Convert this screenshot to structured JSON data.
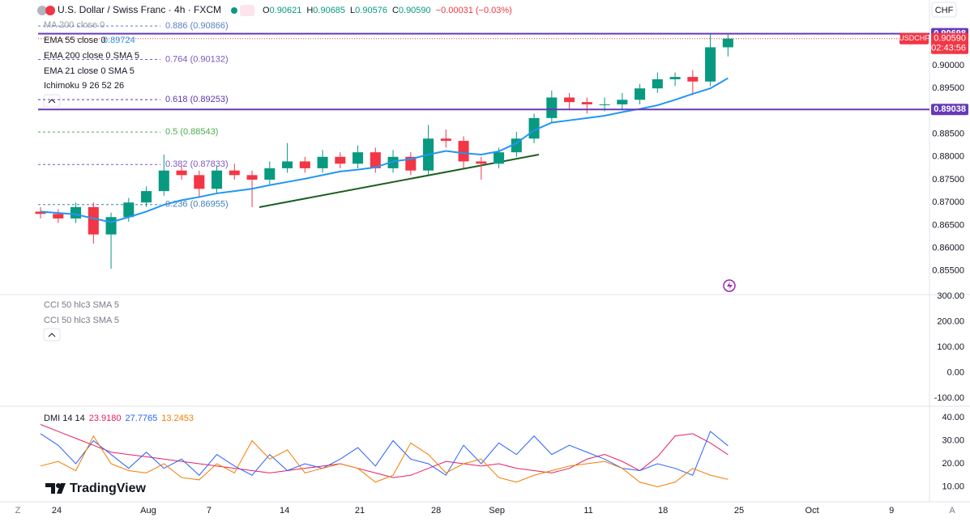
{
  "header": {
    "symbol": "U.S. Dollar / Swiss Franc · 4h · FXCM",
    "ohlc": [
      {
        "k": "O",
        "v": "0.90621"
      },
      {
        "k": "H",
        "v": "0.90685"
      },
      {
        "k": "L",
        "v": "0.90576"
      },
      {
        "k": "C",
        "v": "0.90590"
      }
    ],
    "change": "−0.00031 (−0.03%)",
    "currency": "CHF"
  },
  "studies": [
    {
      "name": "MA 200 close 0"
    },
    {
      "name": "EMA 200 close 0 SMA 5"
    },
    {
      "name": "EMA 21 close 0 SMA 5"
    },
    {
      "name": "Ichimoku 9 26 52 26"
    }
  ],
  "cci_studies": [
    "CCI 50 hlc3 SMA 5",
    "CCI 50 hlc3 SMA 5"
  ],
  "logo": "TradingView",
  "corner_buttons": [
    "Z",
    "A"
  ],
  "chart_data": [
    {
      "type": "candlestick",
      "xlim": [
        -0.14,
        50.34
      ],
      "xticks": [
        {
          "value": 0.92,
          "label": "24"
        },
        {
          "value": 6.11,
          "label": "Aug"
        },
        {
          "value": 9.56,
          "label": "7"
        },
        {
          "value": 13.84,
          "label": "14"
        },
        {
          "value": 18.11,
          "label": "21"
        },
        {
          "value": 22.44,
          "label": "28"
        },
        {
          "value": 25.89,
          "label": "Sep"
        },
        {
          "value": 31.08,
          "label": "11"
        },
        {
          "value": 35.31,
          "label": "18"
        },
        {
          "value": 39.63,
          "label": "25"
        },
        {
          "value": 43.77,
          "label": "Oct"
        },
        {
          "value": 48.28,
          "label": "9"
        }
      ],
      "ylim": [
        0.85018,
        0.91436
      ],
      "yticks": [
        {
          "value": 0.855,
          "label": "0.85500"
        },
        {
          "value": 0.86,
          "label": "0.86000"
        },
        {
          "value": 0.865,
          "label": "0.86500"
        },
        {
          "value": 0.87,
          "label": "0.87000"
        },
        {
          "value": 0.875,
          "label": "0.87500"
        },
        {
          "value": 0.88,
          "label": "0.88000"
        },
        {
          "value": 0.885,
          "label": "0.88500"
        },
        {
          "value": 0.89,
          "label": "0.89000"
        },
        {
          "value": 0.895,
          "label": "0.89500"
        },
        {
          "value": 0.9,
          "label": "0.90000"
        }
      ],
      "grid": false,
      "up_color": "#089981",
      "down_color": "#f23645",
      "open": [
        0.868,
        0.8675,
        0.8665,
        0.869,
        0.863,
        0.8668,
        0.87,
        0.8725,
        0.877,
        0.876,
        0.873,
        0.877,
        0.876,
        0.875,
        0.8775,
        0.879,
        0.8775,
        0.88,
        0.8785,
        0.881,
        0.8775,
        0.88,
        0.877,
        0.884,
        0.8835,
        0.879,
        0.8785,
        0.881,
        0.884,
        0.8885,
        0.893,
        0.892,
        0.8915,
        0.8915,
        0.8925,
        0.895,
        0.897,
        0.8975,
        0.8965,
        0.904
      ],
      "high": [
        0.869,
        0.8685,
        0.87,
        0.87,
        0.8678,
        0.871,
        0.8735,
        0.8805,
        0.878,
        0.877,
        0.878,
        0.8785,
        0.877,
        0.879,
        0.883,
        0.88,
        0.8815,
        0.881,
        0.8825,
        0.882,
        0.8815,
        0.881,
        0.887,
        0.886,
        0.8845,
        0.88,
        0.882,
        0.8855,
        0.8895,
        0.8945,
        0.894,
        0.893,
        0.893,
        0.894,
        0.896,
        0.8985,
        0.8985,
        0.899,
        0.9069,
        0.9069
      ],
      "low": [
        0.8665,
        0.8655,
        0.8655,
        0.861,
        0.8555,
        0.8658,
        0.869,
        0.8715,
        0.875,
        0.871,
        0.872,
        0.875,
        0.869,
        0.874,
        0.8765,
        0.8765,
        0.8765,
        0.8775,
        0.8775,
        0.8765,
        0.8765,
        0.876,
        0.876,
        0.882,
        0.8775,
        0.875,
        0.8775,
        0.88,
        0.883,
        0.8875,
        0.8905,
        0.8895,
        0.89,
        0.8905,
        0.8915,
        0.894,
        0.8955,
        0.8935,
        0.8955,
        0.902
      ],
      "close": [
        0.8675,
        0.8665,
        0.869,
        0.863,
        0.8668,
        0.87,
        0.8725,
        0.877,
        0.876,
        0.873,
        0.877,
        0.876,
        0.875,
        0.8775,
        0.879,
        0.8775,
        0.88,
        0.8785,
        0.881,
        0.8775,
        0.88,
        0.877,
        0.884,
        0.8835,
        0.879,
        0.8785,
        0.881,
        0.884,
        0.8885,
        0.893,
        0.892,
        0.8915,
        0.8915,
        0.8925,
        0.895,
        0.897,
        0.8975,
        0.8965,
        0.904,
        0.9059
      ],
      "series": [
        {
          "name": "EMA 55 close 0",
          "color": "#2196f3",
          "value_label": "0.89724",
          "values": [
            0.868,
            0.8677,
            0.8674,
            0.8665,
            0.8657,
            0.8668,
            0.868,
            0.8695,
            0.8705,
            0.8712,
            0.872,
            0.8725,
            0.873,
            0.8738,
            0.8745,
            0.8752,
            0.876,
            0.8768,
            0.8772,
            0.8777,
            0.879,
            0.8795,
            0.8805,
            0.8813,
            0.8808,
            0.8805,
            0.8812,
            0.883,
            0.8858,
            0.8875,
            0.888,
            0.8885,
            0.889,
            0.8898,
            0.8905,
            0.8913,
            0.8925,
            0.8938,
            0.895,
            0.89724
          ]
        }
      ],
      "fib_levels": [
        {
          "value": 0.90866,
          "label": "0.886 (0.90866)",
          "color": "#5b7fc4"
        },
        {
          "value": 0.90132,
          "label": "0.764 (0.90132)",
          "color": "#7e57c2"
        },
        {
          "value": 0.89253,
          "label": "0.618 (0.89253)",
          "color": "#5e35b1"
        },
        {
          "value": 0.88543,
          "label": "0.5 (0.88543)",
          "color": "#4caf50"
        },
        {
          "value": 0.87833,
          "label": "0.382 (0.87833)",
          "color": "#7e57c2"
        },
        {
          "value": 0.86955,
          "label": "0.236 (0.86955)",
          "color": "#3f7fbf"
        }
      ],
      "hlines": [
        {
          "value": 0.90698,
          "color": "#673ab7"
        },
        {
          "value": 0.89038,
          "color": "#673ab7"
        }
      ],
      "last_price": {
        "value": 0.9059,
        "label": "0.90590",
        "symbol": "USDCHF",
        "countdown": "02:43:56",
        "color": "#f23645"
      }
    },
    {
      "type": "line",
      "ylim": [
        -125.4,
        306.3
      ],
      "yticks": [
        {
          "value": 300,
          "label": "300.00"
        },
        {
          "value": 200,
          "label": "200.00"
        },
        {
          "value": 100,
          "label": "100.00"
        },
        {
          "value": 0,
          "label": "0.00"
        },
        {
          "value": -100,
          "label": "-100.00"
        }
      ],
      "series": []
    },
    {
      "type": "line",
      "title": "DMI 14 14",
      "ylim": [
        3.5,
        44.2
      ],
      "yticks": [
        {
          "value": 40,
          "label": "40.00"
        },
        {
          "value": 30,
          "label": "30.00"
        },
        {
          "value": 20,
          "label": "20.00"
        },
        {
          "value": 10,
          "label": "10.00"
        }
      ],
      "series": [
        {
          "name": "23.9180",
          "color": "#e91e63",
          "values": [
            37,
            34,
            31,
            28,
            25,
            24,
            23,
            22,
            21,
            20,
            19,
            18,
            17,
            16,
            17,
            18,
            19,
            20,
            18,
            16,
            14,
            15,
            18,
            21,
            20,
            19,
            20,
            18,
            17,
            16,
            18,
            22,
            24,
            21,
            17,
            23,
            32,
            33,
            29,
            23.918
          ]
        },
        {
          "name": "27.7765",
          "color": "#2962ff",
          "values": [
            33,
            28,
            20,
            30,
            24,
            18,
            25,
            18,
            22,
            15,
            24,
            19,
            15,
            24,
            17,
            20,
            18,
            22,
            27,
            19,
            30,
            22,
            20,
            15,
            28,
            20,
            29,
            24,
            32,
            24,
            28,
            25,
            22,
            18,
            17,
            20,
            18,
            15,
            34,
            27.7765
          ]
        },
        {
          "name": "13.2453",
          "color": "#f57c00",
          "values": [
            19,
            21,
            17,
            32,
            20,
            17,
            16,
            20,
            14,
            13,
            20,
            16,
            30,
            22,
            26,
            16,
            18,
            20,
            18,
            12,
            15,
            29,
            24,
            16,
            20,
            22,
            14,
            12,
            15,
            17,
            19,
            20,
            21,
            18,
            12,
            10,
            12,
            18,
            15,
            13.2453
          ]
        }
      ]
    }
  ]
}
